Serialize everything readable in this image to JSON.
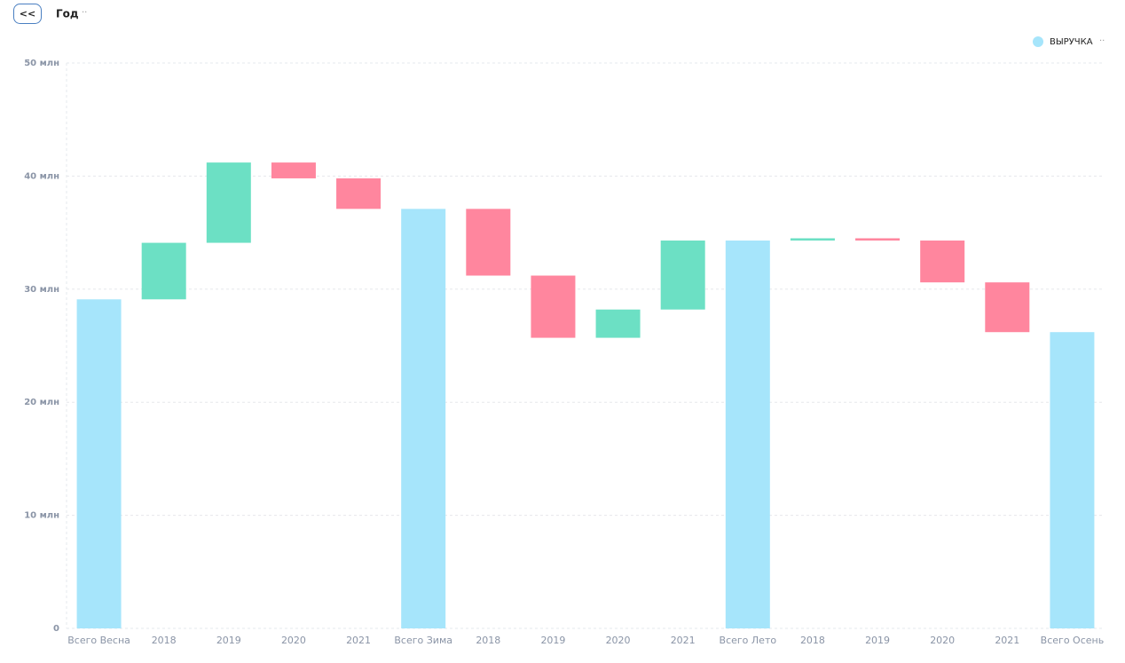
{
  "header": {
    "back_button": "<<",
    "title": "Год",
    "menu": "··"
  },
  "chart_data": {
    "type": "waterfall",
    "legend": {
      "name": "ВЫРУЧКА",
      "color": "#a6e5fb",
      "menu": "··",
      "position": "top-right"
    },
    "categories": [
      "Всего Весна",
      "2018",
      "2019",
      "2020",
      "2021",
      "Всего Зима",
      "2018",
      "2019",
      "2020",
      "2021",
      "Всего Лето",
      "2018",
      "2019",
      "2020",
      "2021",
      "Всего Осень"
    ],
    "measure": [
      "total",
      "relative",
      "relative",
      "relative",
      "relative",
      "total",
      "relative",
      "relative",
      "relative",
      "relative",
      "total",
      "relative",
      "relative",
      "relative",
      "relative",
      "total"
    ],
    "values": [
      29.1,
      5.0,
      7.1,
      -1.4,
      -2.7,
      37.1,
      -5.9,
      -5.5,
      2.5,
      6.1,
      34.3,
      0.2,
      -0.2,
      -3.7,
      -4.4,
      26.2
    ],
    "colors": {
      "total": "#a6e5fb",
      "increase": "#6ce0c4",
      "decrease": "#ff869e"
    },
    "ylim": [
      0,
      50
    ],
    "yticks": [
      0,
      {
        "value": 10,
        "label": "10 млн"
      },
      {
        "value": 20,
        "label": "20 млн"
      },
      {
        "value": 30,
        "label": "30 млн"
      },
      {
        "value": 40,
        "label": "40 млн"
      },
      {
        "value": 50,
        "label": "50 млн"
      }
    ],
    "grid": true
  }
}
